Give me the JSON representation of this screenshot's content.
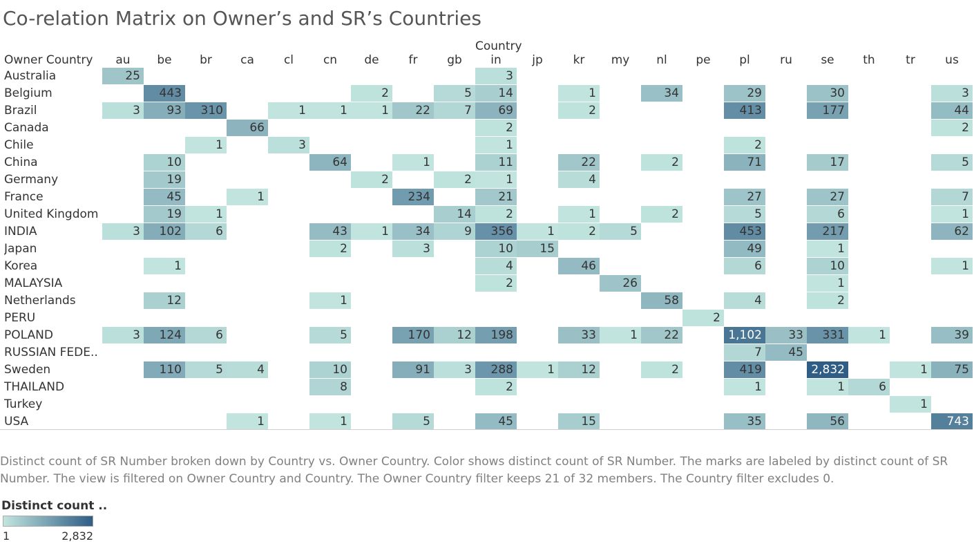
{
  "title": "Co-relation Matrix on Owner’s and SR’s Countries",
  "colors": {
    "low": "#c1e5de",
    "high": "#2f5d86"
  },
  "chart_data": {
    "type": "heatmap",
    "column_group_label": "Country",
    "row_header": "Owner Country",
    "columns": [
      "au",
      "be",
      "br",
      "ca",
      "cl",
      "cn",
      "de",
      "fr",
      "gb",
      "in",
      "jp",
      "kr",
      "my",
      "nl",
      "pe",
      "pl",
      "ru",
      "se",
      "th",
      "tr",
      "us"
    ],
    "rows": [
      "Australia",
      "Belgium",
      "Brazil",
      "Canada",
      "Chile",
      "China",
      "Germany",
      "France",
      "United Kingdom",
      "INDIA",
      "Japan",
      "Korea",
      "MALAYSIA",
      "Netherlands",
      "PERU",
      "POLAND",
      "RUSSIAN FEDE..",
      "Sweden",
      "THAILAND",
      "Turkey",
      "USA"
    ],
    "values": [
      [
        25,
        null,
        null,
        null,
        null,
        null,
        null,
        null,
        null,
        3,
        null,
        null,
        null,
        null,
        null,
        null,
        null,
        null,
        null,
        null,
        null
      ],
      [
        null,
        443,
        null,
        null,
        null,
        null,
        2,
        null,
        5,
        14,
        null,
        1,
        null,
        34,
        null,
        29,
        null,
        30,
        null,
        null,
        3
      ],
      [
        3,
        93,
        310,
        null,
        1,
        1,
        1,
        22,
        7,
        69,
        null,
        2,
        null,
        null,
        null,
        413,
        null,
        177,
        null,
        null,
        44
      ],
      [
        null,
        null,
        null,
        66,
        null,
        null,
        null,
        null,
        null,
        2,
        null,
        null,
        null,
        null,
        null,
        null,
        null,
        null,
        null,
        null,
        2
      ],
      [
        null,
        null,
        1,
        null,
        3,
        null,
        null,
        null,
        null,
        1,
        null,
        null,
        null,
        null,
        null,
        2,
        null,
        null,
        null,
        null,
        null
      ],
      [
        null,
        10,
        null,
        null,
        null,
        64,
        null,
        1,
        null,
        11,
        null,
        22,
        null,
        2,
        null,
        71,
        null,
        17,
        null,
        null,
        5
      ],
      [
        null,
        19,
        null,
        null,
        null,
        null,
        2,
        null,
        2,
        1,
        null,
        4,
        null,
        null,
        null,
        null,
        null,
        null,
        null,
        null,
        null
      ],
      [
        null,
        45,
        null,
        1,
        null,
        null,
        null,
        234,
        null,
        21,
        null,
        null,
        null,
        null,
        null,
        27,
        null,
        27,
        null,
        null,
        7
      ],
      [
        null,
        19,
        1,
        null,
        null,
        null,
        null,
        null,
        14,
        2,
        null,
        1,
        null,
        2,
        null,
        5,
        null,
        6,
        null,
        null,
        1
      ],
      [
        3,
        102,
        6,
        null,
        null,
        43,
        1,
        34,
        9,
        356,
        1,
        2,
        5,
        null,
        null,
        453,
        null,
        217,
        null,
        null,
        62
      ],
      [
        null,
        null,
        null,
        null,
        null,
        2,
        null,
        3,
        null,
        10,
        15,
        null,
        null,
        null,
        null,
        49,
        null,
        1,
        null,
        null,
        null
      ],
      [
        null,
        1,
        null,
        null,
        null,
        null,
        null,
        null,
        null,
        4,
        null,
        46,
        null,
        null,
        null,
        6,
        null,
        10,
        null,
        null,
        1
      ],
      [
        null,
        null,
        null,
        null,
        null,
        null,
        null,
        null,
        null,
        2,
        null,
        null,
        26,
        null,
        null,
        null,
        null,
        1,
        null,
        null,
        null
      ],
      [
        null,
        12,
        null,
        null,
        null,
        1,
        null,
        null,
        null,
        null,
        null,
        null,
        null,
        58,
        null,
        4,
        null,
        2,
        null,
        null,
        null
      ],
      [
        null,
        null,
        null,
        null,
        null,
        null,
        null,
        null,
        null,
        null,
        null,
        null,
        null,
        null,
        2,
        null,
        null,
        null,
        null,
        null,
        null
      ],
      [
        3,
        124,
        6,
        null,
        null,
        5,
        null,
        170,
        12,
        198,
        null,
        33,
        1,
        22,
        null,
        1102,
        33,
        331,
        1,
        null,
        39
      ],
      [
        null,
        null,
        null,
        null,
        null,
        null,
        null,
        null,
        null,
        null,
        null,
        null,
        null,
        null,
        null,
        7,
        45,
        null,
        null,
        null,
        null
      ],
      [
        null,
        110,
        5,
        4,
        null,
        10,
        null,
        91,
        3,
        288,
        1,
        12,
        null,
        2,
        null,
        419,
        null,
        2832,
        null,
        1,
        75
      ],
      [
        null,
        null,
        null,
        null,
        null,
        8,
        null,
        null,
        null,
        2,
        null,
        null,
        null,
        null,
        null,
        1,
        null,
        1,
        6,
        null,
        null
      ],
      [
        null,
        null,
        null,
        null,
        null,
        null,
        null,
        null,
        null,
        null,
        null,
        null,
        null,
        null,
        null,
        null,
        null,
        null,
        null,
        1,
        null
      ],
      [
        null,
        null,
        null,
        1,
        null,
        1,
        null,
        5,
        null,
        45,
        null,
        15,
        null,
        null,
        null,
        35,
        null,
        56,
        null,
        null,
        743
      ]
    ],
    "color_range": [
      1,
      2832
    ]
  },
  "caption": "Distinct count of SR Number broken down by Country vs. Owner Country.  Color shows distinct count of SR Number.  The marks are labeled by distinct count of SR Number. The view is filtered on Owner Country and Country. The Owner Country filter keeps 21 of 32 members. The Country filter excludes 0.",
  "legend": {
    "title": "Distinct count ..",
    "min_label": "1",
    "max_label": "2,832"
  }
}
